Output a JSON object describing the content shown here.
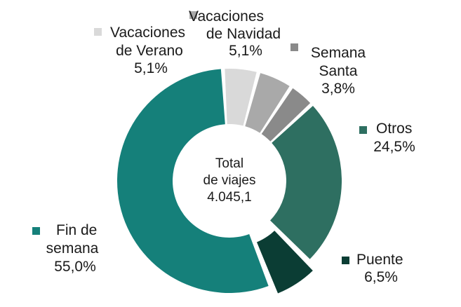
{
  "chart_data": {
    "type": "pie",
    "variant": "donut",
    "center_text": {
      "line1": "Total",
      "line2": "de viajes",
      "value": "4.045,1"
    },
    "slices": [
      {
        "name_lines": [
          "Vacaciones",
          "de Navidad"
        ],
        "value": 5.1,
        "value_label": "5,1%",
        "color": "#a9a9a9"
      },
      {
        "name_lines": [
          "Semana",
          "Santa"
        ],
        "value": 3.8,
        "value_label": "3,8%",
        "color": "#8a8a8a"
      },
      {
        "name_lines": [
          "Otros"
        ],
        "value": 24.5,
        "value_label": "24,5%",
        "color": "#2e6f61"
      },
      {
        "name_lines": [
          "Puente"
        ],
        "value": 6.5,
        "value_label": "6,5%",
        "color": "#0b3d34"
      },
      {
        "name_lines": [
          "Fin de",
          "semana"
        ],
        "value": 55.0,
        "value_label": "55,0%",
        "color": "#15807a"
      },
      {
        "name_lines": [
          "Vacaciones",
          "de Verano"
        ],
        "value": 5.1,
        "value_label": "5,1%",
        "color": "#d9d9d9"
      }
    ],
    "legend_placement": "labels-around-slices"
  }
}
